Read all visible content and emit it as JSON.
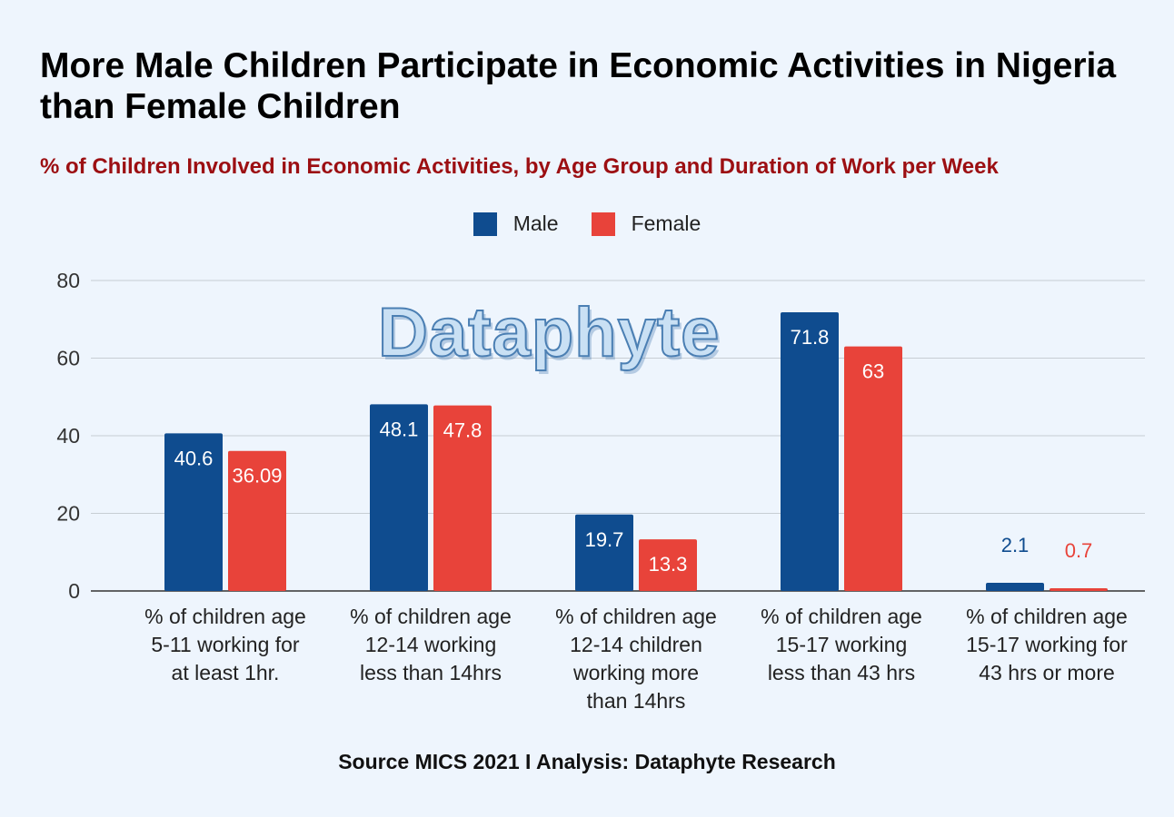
{
  "chart_data": {
    "type": "bar",
    "title": "More Male Children Participate in Economic Activities in Nigeria than Female Children",
    "subtitle": "% of Children Involved in Economic Activities, by Age Group and Duration of Work per Week",
    "categories": [
      [
        "% of children age",
        "5-11 working for",
        "at least 1hr."
      ],
      [
        "% of children age",
        "12-14 working",
        "less than 14hrs"
      ],
      [
        "% of children age",
        "12-14 children",
        "working more",
        "than 14hrs"
      ],
      [
        "% of children age",
        "15-17 working",
        "less than 43 hrs"
      ],
      [
        "% of children age",
        "15-17 working for",
        "43 hrs or more"
      ]
    ],
    "series": [
      {
        "name": "Male",
        "color": "#0f4c8f",
        "values": [
          40.6,
          48.1,
          19.7,
          71.8,
          2.1
        ],
        "labels": [
          "40.6",
          "48.1",
          "19.7",
          "71.8",
          "2.1"
        ]
      },
      {
        "name": "Female",
        "color": "#e8433a",
        "values": [
          36.09,
          47.8,
          13.3,
          63,
          0.7
        ],
        "labels": [
          "36.09",
          "47.8",
          "13.3",
          "63",
          "0.7"
        ]
      }
    ],
    "ylim": [
      0,
      80
    ],
    "yticks": [
      0,
      20,
      40,
      60,
      80
    ],
    "grid": true,
    "legend": "top-center"
  },
  "watermark": "Dataphyte",
  "source": "Source MICS 2021 I Analysis: Dataphyte Research"
}
